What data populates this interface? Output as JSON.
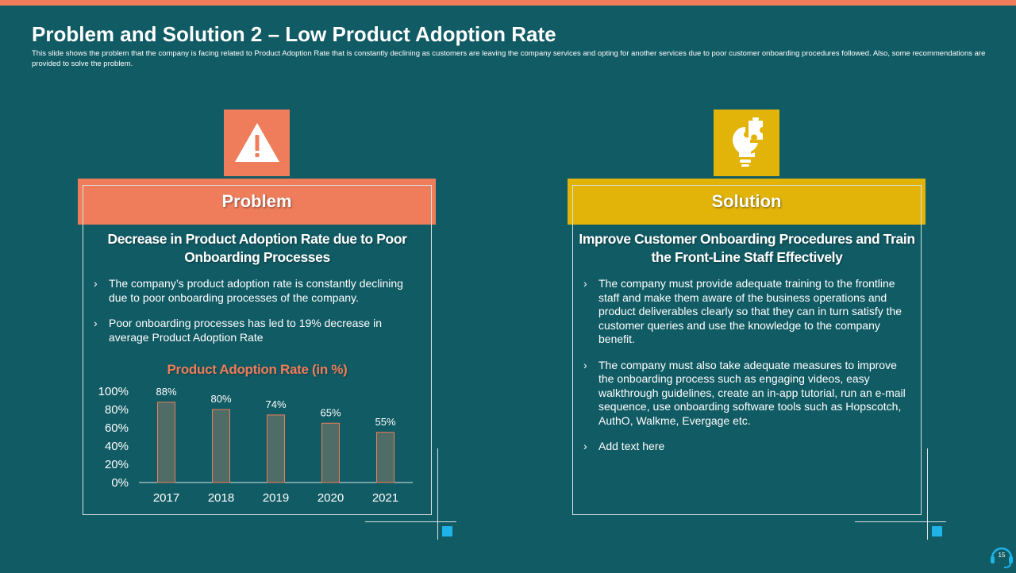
{
  "slide": {
    "title": "Problem and Solution 2 – Low Product Adoption Rate",
    "subtitle": "This slide shows the problem that the company is facing related to Product Adoption Rate that is constantly declining as customers are leaving the company services and opting for another services due to poor customer onboarding procedures followed. Also, some recommendations are provided to solve the problem.",
    "page_number": "15"
  },
  "colors": {
    "background": "#115b64",
    "problem_accent": "#ef7d5b",
    "solution_accent": "#e2b309",
    "corner_square": "#1fb3e8"
  },
  "problem": {
    "icon": "warning-icon",
    "label": "Problem",
    "heading": "Decrease in Product Adoption Rate due to Poor Onboarding Processes",
    "bullets": [
      "The company’s product adoption rate is constantly declining due to poor onboarding processes of the company.",
      "Poor onboarding processes has led to 19% decrease in average Product Adoption Rate"
    ]
  },
  "solution": {
    "icon": "lightbulb-puzzle-icon",
    "label": "Solution",
    "heading": "Improve Customer Onboarding Procedures and Train the Front-Line Staff Effectively",
    "bullets": [
      "The company must provide adequate training to the frontline staff and make them aware of the business operations and product deliverables clearly so that they can in turn satisfy the customer queries and use the knowledge to the company benefit.",
      "The company must also take adequate measures to improve the onboarding process such as engaging videos, easy walkthrough guidelines, create an in-app tutorial, run an e-mail sequence, use onboarding software tools such as Hopscotch, AuthO, Walkme, Evergage etc.",
      "Add text here"
    ]
  },
  "chart_data": {
    "type": "bar",
    "title": "Product Adoption Rate (in %)",
    "categories": [
      "2017",
      "2018",
      "2019",
      "2020",
      "2021"
    ],
    "values": [
      88,
      80,
      74,
      65,
      55
    ],
    "data_labels": [
      "88%",
      "80%",
      "74%",
      "65%",
      "55%"
    ],
    "y_ticks": [
      "0%",
      "20%",
      "40%",
      "60%",
      "80%",
      "100%"
    ],
    "ylim": [
      0,
      100
    ],
    "grid": false,
    "bar_color": "#4f6c66",
    "bar_edge_color": "#ef7d5b"
  }
}
